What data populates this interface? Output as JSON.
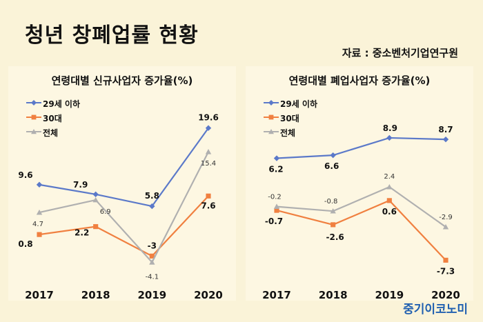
{
  "title": "청년 창폐업률 현황",
  "source": "자료 : 중소벤처기업연구원",
  "logo": "중기이코노미",
  "colors": {
    "u29": "#5b79c9",
    "30s": "#f08040",
    "total": "#b0b0b0"
  },
  "chart_data": [
    {
      "type": "line",
      "title": "연령대별 신규사업자 증가율(%)",
      "x": [
        "2017",
        "2018",
        "2019",
        "2020"
      ],
      "ylim": [
        -6,
        22
      ],
      "legend_position": "top-left",
      "series": [
        {
          "name": "29세 이하",
          "values": [
            9.6,
            7.9,
            5.8,
            19.6
          ],
          "labels": [
            "9.6",
            "7.9",
            "5.8",
            "19.6"
          ],
          "color": "#5b79c9",
          "marker": "diamond"
        },
        {
          "name": "30대",
          "values": [
            0.8,
            2.2,
            -3,
            7.6
          ],
          "labels": [
            "0.8",
            "2.2",
            "-3",
            "7.6"
          ],
          "color": "#f08040",
          "marker": "square"
        },
        {
          "name": "전체",
          "values": [
            4.7,
            6.9,
            -4.1,
            15.4
          ],
          "labels": [
            "4.7",
            "6.9",
            "-4.1",
            "15.4"
          ],
          "color": "#b0b0b0",
          "marker": "triangle"
        }
      ]
    },
    {
      "type": "line",
      "title": "연령대별 폐업사업자 증가율(%)",
      "x": [
        "2017",
        "2018",
        "2019",
        "2020"
      ],
      "ylim": [
        -9,
        12
      ],
      "legend_position": "top-left",
      "series": [
        {
          "name": "29세 이하",
          "values": [
            6.2,
            6.6,
            8.9,
            8.7
          ],
          "labels": [
            "6.2",
            "6.6",
            "8.9",
            "8.7"
          ],
          "color": "#5b79c9",
          "marker": "diamond"
        },
        {
          "name": "30대",
          "values": [
            -0.7,
            -2.6,
            0.6,
            -7.3
          ],
          "labels": [
            "-0.7",
            "-2.6",
            "0.6",
            "-7.3"
          ],
          "color": "#f08040",
          "marker": "square"
        },
        {
          "name": "전체",
          "values": [
            -0.2,
            -0.8,
            2.4,
            -2.9
          ],
          "labels": [
            "-0.2",
            "-0.8",
            "2.4",
            "-2.9"
          ],
          "color": "#b0b0b0",
          "marker": "triangle"
        }
      ]
    }
  ]
}
